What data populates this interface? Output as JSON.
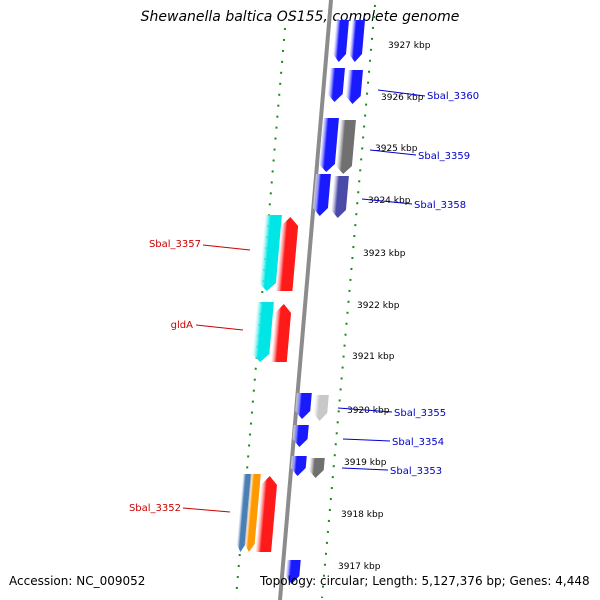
{
  "title": "Shewanella baltica OS155, complete genome",
  "accession": "Accession: NC_009052",
  "topology": "Topology: circular; Length: 5,127,376 bp; Genes: 4,448",
  "kbp_ticks": [
    {
      "label": "3927 kbp"
    },
    {
      "label": "3926 kbp"
    },
    {
      "label": "3925 kbp"
    },
    {
      "label": "3924 kbp"
    },
    {
      "label": "3923 kbp"
    },
    {
      "label": "3922 kbp"
    },
    {
      "label": "3921 kbp"
    },
    {
      "label": "3920 kbp"
    },
    {
      "label": "3919 kbp"
    },
    {
      "label": "3918 kbp"
    },
    {
      "label": "3917 kbp"
    }
  ],
  "gene_labels": [
    {
      "text": "Sbal_3360",
      "color": "#0000cc"
    },
    {
      "text": "Sbal_3359",
      "color": "#0000cc"
    },
    {
      "text": "Sbal_3358",
      "color": "#0000cc"
    },
    {
      "text": "Sbal_3357",
      "color": "#cc0000"
    },
    {
      "text": "gldA",
      "color": "#cc0000"
    },
    {
      "text": "Sbal_3355",
      "color": "#0000cc"
    },
    {
      "text": "Sbal_3354",
      "color": "#0000cc"
    },
    {
      "text": "Sbal_3353",
      "color": "#0000cc"
    },
    {
      "text": "Sbal_3352",
      "color": "#cc0000"
    }
  ],
  "colors": {
    "backbone": "#8c8c8c",
    "dotted_track": "#1a8a1a",
    "blue_gene": "#1a1aff",
    "red_gene": "#ff1a1a",
    "cyan_gene": "#00e5e5",
    "gray_gene": "#707070",
    "light_gray_gene": "#c8c8c8",
    "orange_gene": "#ff9900",
    "steel_gene": "#4a7fb5",
    "purple_gene": "#4a4aa8"
  }
}
